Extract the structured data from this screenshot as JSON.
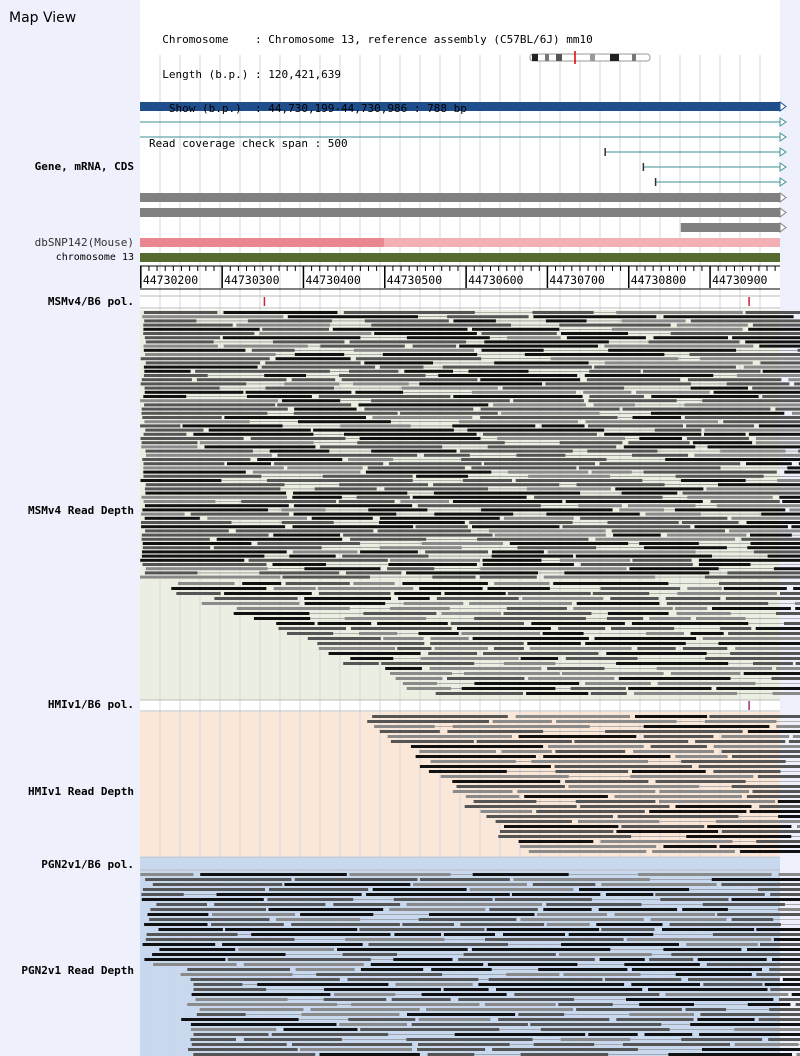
{
  "view": {
    "title": "Map View",
    "info_lines": [
      "  Chromosome    : Chromosome 13, reference assembly (C57BL/6J) mm10",
      "  Length (b.p.) : 120,421,639",
      "   Show (b.p.)  : 44,730,199-44,730,986 : 788 bp",
      "Read coverage check span : 500"
    ]
  },
  "colors": {
    "sidebar": "#eef0fb",
    "gene": "#1f4e8c",
    "mrna": "#3e8f96",
    "cds": "#808080",
    "snp": "#e8878f",
    "snp_light": "#f2b0b5",
    "chromosome": "#556b2f",
    "msm_bg": "#ebefe2",
    "hmi_bg": "#fbe7d8",
    "pgn_bg": "#c8d8ef",
    "pol_mark": "#cc2233"
  },
  "tracks": {
    "gene_label": "Gene, mRNA, CDS",
    "snp_label": "dbSNP142(Mouse)",
    "chromosome_label": "chromosome 13",
    "msm_pol_label": "MSMv4/B6 pol.",
    "msm_depth_label": "MSMv4 Read Depth",
    "hmi_pol_label": "HMIv1/B6 pol.",
    "hmi_depth_label": "HMIv1 Read Depth",
    "pgn_pol_label": "PGN2v1/B6 pol.",
    "pgn_depth_label": "PGN2v1 Read Depth"
  },
  "axis": {
    "start": 44730199,
    "end": 44730986,
    "ticks": [
      44730200,
      44730300,
      44730400,
      44730500,
      44730600,
      44730700,
      44730800,
      44730900
    ]
  },
  "features": {
    "mrna_starts": [
      44730199,
      44730199,
      44730771,
      44730818,
      44730833
    ],
    "cds_starts": [
      44730199,
      44730199,
      44730864
    ],
    "snp_split": 44730499
  },
  "polymorphisms": {
    "msm": [
      44730352,
      44730948
    ],
    "hmi": [
      44730948
    ]
  }
}
